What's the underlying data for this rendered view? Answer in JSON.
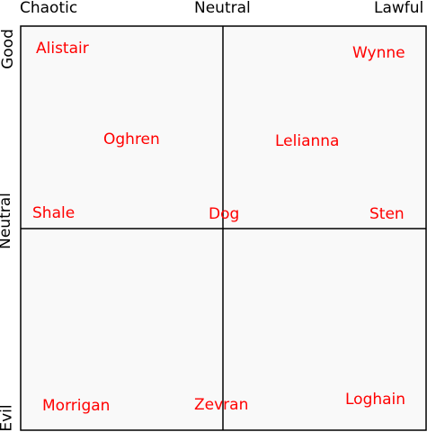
{
  "axes": {
    "top": [
      "Chaotic",
      "Neutral",
      "Lawful"
    ],
    "left": [
      "Good",
      "Neutral",
      "Evil"
    ]
  },
  "colors": {
    "label": "#ff0000",
    "grid": "#000000",
    "quadrant_fill": "#f9f9f9"
  },
  "characters": [
    "Alistair",
    "Wynne",
    "Oghren",
    "Lelianna",
    "Shale",
    "Dog",
    "Sten",
    "Morrigan",
    "Zevran",
    "Loghain"
  ]
}
